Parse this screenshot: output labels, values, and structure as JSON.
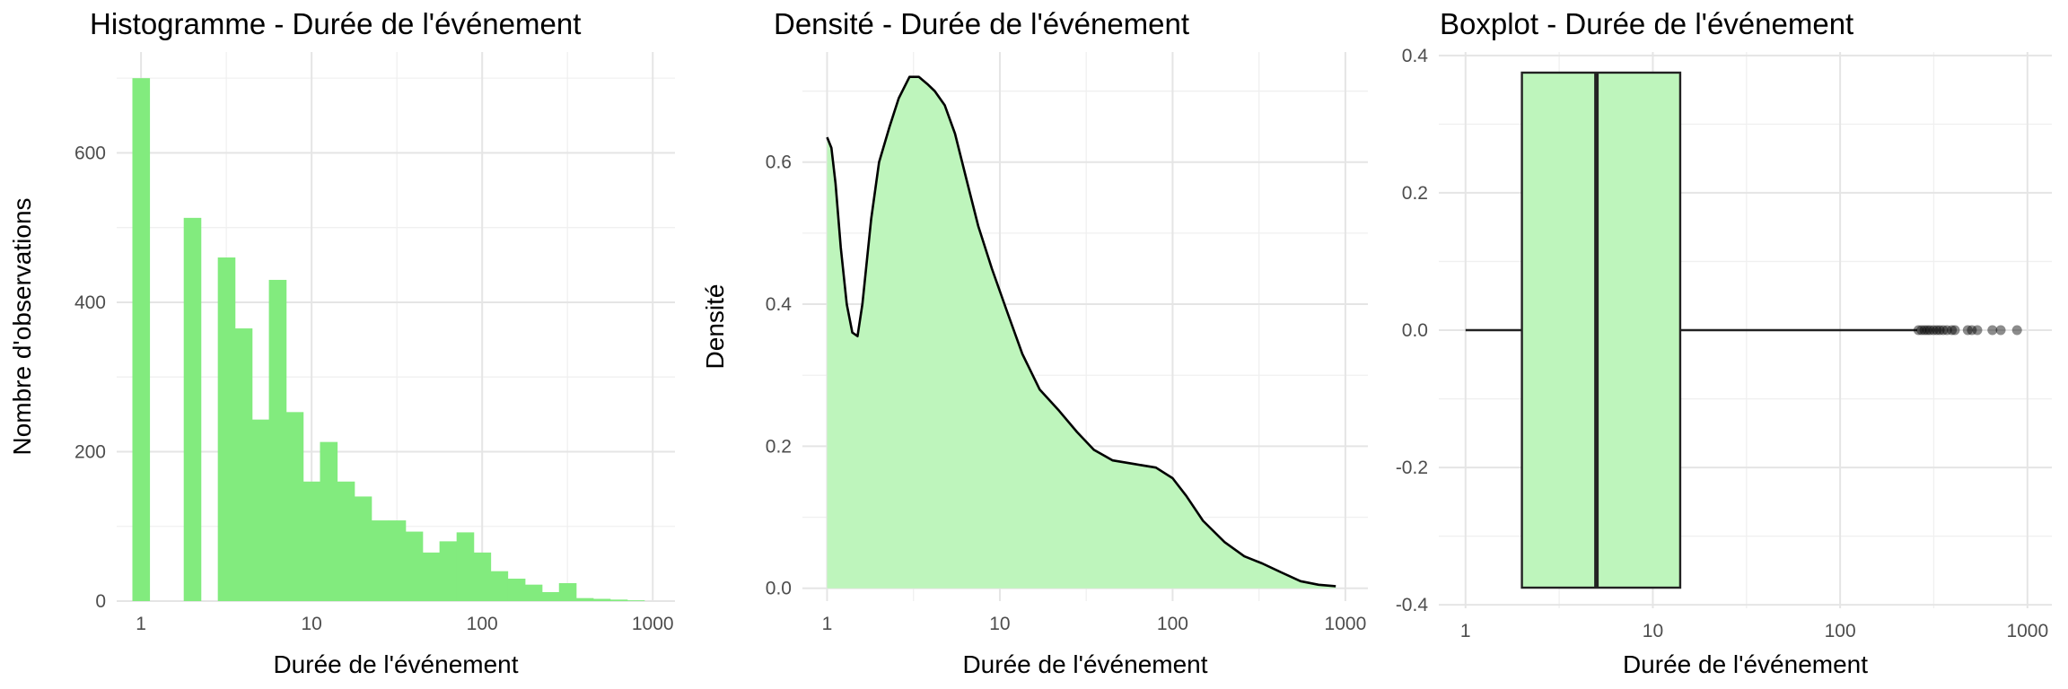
{
  "chart_data": [
    {
      "type": "bar",
      "title": "Histogramme - Durée de l'événement",
      "xlabel": "Durée de l'événement",
      "ylabel": "Nombre d'observations",
      "x_scale": "log10",
      "xlim": [
        0.72,
        1350
      ],
      "ylim": [
        0,
        735
      ],
      "x_ticks": [
        1,
        10,
        100,
        1000
      ],
      "x_tick_labels": [
        "1",
        "10",
        "100",
        "1000"
      ],
      "y_ticks": [
        0,
        200,
        400,
        600
      ],
      "y_tick_labels": [
        "0",
        "200",
        "400",
        "600"
      ],
      "grid": true,
      "color": "#82EB7E",
      "bins": [
        {
          "x0": 0.89,
          "x1": 1.12,
          "count": 700
        },
        {
          "x0": 1.78,
          "x1": 2.24,
          "count": 513
        },
        {
          "x0": 2.82,
          "x1": 3.55,
          "count": 460
        },
        {
          "x0": 3.55,
          "x1": 4.47,
          "count": 365
        },
        {
          "x0": 4.47,
          "x1": 5.62,
          "count": 243
        },
        {
          "x0": 5.62,
          "x1": 7.08,
          "count": 430
        },
        {
          "x0": 7.08,
          "x1": 8.91,
          "count": 253
        },
        {
          "x0": 8.91,
          "x1": 11.2,
          "count": 160
        },
        {
          "x0": 11.2,
          "x1": 14.1,
          "count": 213
        },
        {
          "x0": 14.1,
          "x1": 17.8,
          "count": 160
        },
        {
          "x0": 17.8,
          "x1": 22.4,
          "count": 140
        },
        {
          "x0": 22.4,
          "x1": 28.2,
          "count": 108
        },
        {
          "x0": 28.2,
          "x1": 35.5,
          "count": 108
        },
        {
          "x0": 35.5,
          "x1": 44.7,
          "count": 93
        },
        {
          "x0": 44.7,
          "x1": 56.2,
          "count": 65
        },
        {
          "x0": 56.2,
          "x1": 70.8,
          "count": 80
        },
        {
          "x0": 70.8,
          "x1": 89.1,
          "count": 92
        },
        {
          "x0": 89.1,
          "x1": 112,
          "count": 65
        },
        {
          "x0": 112,
          "x1": 141,
          "count": 40
        },
        {
          "x0": 141,
          "x1": 178,
          "count": 30
        },
        {
          "x0": 178,
          "x1": 224,
          "count": 22
        },
        {
          "x0": 224,
          "x1": 282,
          "count": 12
        },
        {
          "x0": 282,
          "x1": 355,
          "count": 24
        },
        {
          "x0": 355,
          "x1": 447,
          "count": 4
        },
        {
          "x0": 447,
          "x1": 562,
          "count": 3
        },
        {
          "x0": 562,
          "x1": 708,
          "count": 2
        },
        {
          "x0": 708,
          "x1": 891,
          "count": 1
        }
      ]
    },
    {
      "type": "area",
      "title": "Densité - Durée de l'événement",
      "xlabel": "Durée de l'événement",
      "ylabel": "Densité",
      "x_scale": "log10",
      "xlim": [
        0.72,
        1350
      ],
      "ylim": [
        -0.018,
        0.755
      ],
      "x_ticks": [
        1,
        10,
        100,
        1000
      ],
      "x_tick_labels": [
        "1",
        "10",
        "100",
        "1000"
      ],
      "y_ticks": [
        0.0,
        0.2,
        0.4,
        0.6
      ],
      "y_tick_labels": [
        "0.0",
        "0.2",
        "0.4",
        "0.6"
      ],
      "grid": true,
      "fill_color": "#BEF5BC",
      "line_color": "#000000",
      "x": [
        1,
        1.06,
        1.12,
        1.2,
        1.3,
        1.4,
        1.5,
        1.6,
        1.8,
        2,
        2.3,
        2.6,
        3,
        3.4,
        3.8,
        4.2,
        4.8,
        5.5,
        6.5,
        7.5,
        9,
        11,
        13.5,
        17,
        22,
        28,
        35,
        45,
        60,
        80,
        100,
        120,
        150,
        200,
        260,
        330,
        420,
        550,
        700,
        880
      ],
      "y": [
        0.635,
        0.62,
        0.57,
        0.48,
        0.4,
        0.36,
        0.355,
        0.4,
        0.52,
        0.6,
        0.65,
        0.69,
        0.72,
        0.72,
        0.71,
        0.7,
        0.68,
        0.64,
        0.57,
        0.51,
        0.45,
        0.39,
        0.33,
        0.28,
        0.25,
        0.22,
        0.195,
        0.18,
        0.175,
        0.17,
        0.155,
        0.13,
        0.095,
        0.065,
        0.045,
        0.035,
        0.023,
        0.01,
        0.005,
        0.003
      ]
    },
    {
      "type": "boxplot",
      "title": "Boxplot - Durée de l'événement",
      "xlabel": "Durée de l'événement",
      "ylabel": "",
      "x_scale": "log10",
      "xlim": [
        0.72,
        1350
      ],
      "ylim": [
        -0.405,
        0.405
      ],
      "x_ticks": [
        1,
        10,
        100,
        1000
      ],
      "x_tick_labels": [
        "1",
        "10",
        "100",
        "1000"
      ],
      "y_ticks": [
        -0.4,
        -0.2,
        0.0,
        0.2,
        0.4
      ],
      "y_tick_labels": [
        "-0.4",
        "-0.2",
        "0.0",
        "0.2",
        "0.4"
      ],
      "grid": true,
      "fill_color": "#BEF5BC",
      "line_color": "#222222",
      "box": {
        "whisker_low": 1,
        "q1": 2,
        "median": 5,
        "q3": 14,
        "whisker_high": 258,
        "y_low": -0.375,
        "y_high": 0.375
      },
      "outliers": [
        262,
        272,
        282,
        292,
        302,
        315,
        328,
        340,
        355,
        372,
        395,
        410,
        480,
        505,
        540,
        650,
        720,
        880
      ]
    }
  ]
}
